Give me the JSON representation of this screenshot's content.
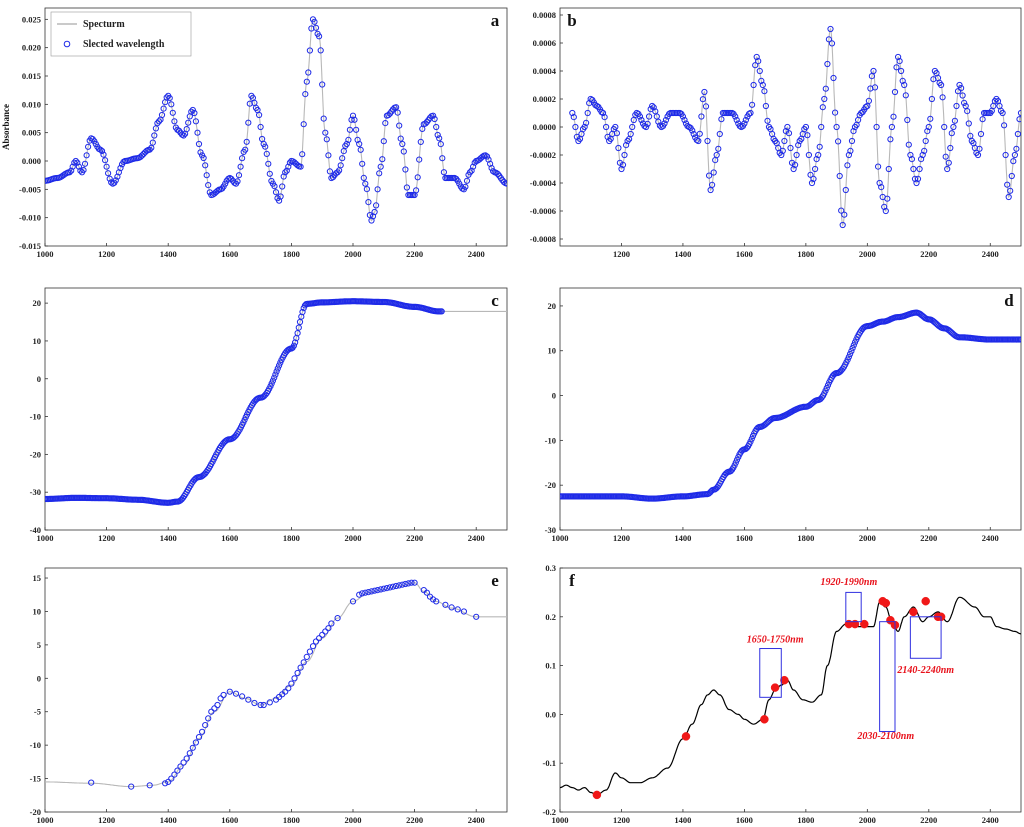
{
  "chart_data": [
    {
      "id": "a",
      "type": "line",
      "panel_label": "a",
      "ylabel": "Absorbance",
      "xlim": [
        1000,
        2500
      ],
      "ylim": [
        -0.015,
        0.027
      ],
      "xticks": [
        1000,
        1200,
        1400,
        1600,
        1800,
        2000,
        2200,
        2400
      ],
      "yticks": [
        -0.015,
        -0.01,
        -0.005,
        0,
        0.005,
        0.01,
        0.015,
        0.02,
        0.025
      ],
      "ytick_labels": [
        "-0.015",
        "-0.010",
        "-0.005",
        "0.000",
        "0.005",
        "0.010",
        "0.015",
        "0.020",
        "0.025"
      ],
      "legend": {
        "position": "top-left",
        "entries": [
          "Specturm",
          "Slected wavelength"
        ]
      },
      "series": [
        {
          "name": "Specturm",
          "style": "line",
          "color": "#b8b8b8",
          "x": [
            1000,
            1040,
            1080,
            1100,
            1120,
            1150,
            1180,
            1220,
            1260,
            1300,
            1340,
            1370,
            1400,
            1430,
            1450,
            1480,
            1510,
            1540,
            1570,
            1600,
            1620,
            1650,
            1670,
            1690,
            1710,
            1740,
            1760,
            1780,
            1800,
            1830,
            1850,
            1870,
            1890,
            1910,
            1930,
            1950,
            1980,
            2000,
            2020,
            2040,
            2060,
            2070,
            2090,
            2110,
            2140,
            2160,
            2180,
            2200,
            2230,
            2260,
            2280,
            2300,
            2330,
            2360,
            2380,
            2400,
            2430,
            2460,
            2500
          ],
          "y": [
            -0.0035,
            -0.003,
            -0.002,
            0.0,
            -0.002,
            0.004,
            0.002,
            -0.004,
            0.0,
            0.0005,
            0.002,
            0.007,
            0.0115,
            0.0055,
            0.0045,
            0.009,
            0.001,
            -0.006,
            -0.005,
            -0.003,
            -0.004,
            0.002,
            0.0115,
            0.009,
            0.003,
            -0.004,
            -0.007,
            -0.002,
            0.0,
            -0.001,
            0.014,
            0.025,
            0.022,
            0.005,
            -0.003,
            -0.002,
            0.003,
            0.008,
            0.003,
            -0.004,
            -0.0105,
            -0.009,
            -0.001,
            0.008,
            0.0095,
            0.003,
            -0.006,
            -0.006,
            0.0065,
            0.008,
            0.004,
            -0.003,
            -0.003,
            -0.005,
            -0.002,
            0.0,
            0.001,
            -0.002,
            -0.004
          ]
        },
        {
          "name": "Slected wavelength",
          "style": "markers-open",
          "color": "#1f2be8",
          "sample_step": 5
        }
      ]
    },
    {
      "id": "b",
      "type": "line",
      "panel_label": "b",
      "xlim": [
        1000,
        2500
      ],
      "ylim": [
        -0.00085,
        0.00085
      ],
      "xticks": [
        1200,
        1400,
        1600,
        1800,
        2000,
        2200,
        2400
      ],
      "yticks": [
        -0.0008,
        -0.0006,
        -0.0004,
        -0.0002,
        0,
        0.0002,
        0.0004,
        0.0006,
        0.0008
      ],
      "ytick_labels": [
        "-0.0008",
        "-0.0006",
        "-0.0004",
        "-0.0002",
        "0.0000",
        "0.0002",
        "0.0004",
        "0.0006",
        "0.0008"
      ],
      "series": [
        {
          "name": "",
          "style": "line",
          "color": "#b8b8b8",
          "x": [
            1040,
            1060,
            1080,
            1100,
            1120,
            1140,
            1160,
            1180,
            1200,
            1220,
            1250,
            1280,
            1300,
            1330,
            1360,
            1390,
            1420,
            1450,
            1470,
            1490,
            1510,
            1530,
            1560,
            1590,
            1620,
            1640,
            1660,
            1680,
            1700,
            1720,
            1740,
            1760,
            1780,
            1800,
            1820,
            1840,
            1860,
            1880,
            1900,
            1920,
            1940,
            1960,
            1980,
            2000,
            2020,
            2040,
            2060,
            2080,
            2100,
            2120,
            2140,
            2160,
            2180,
            2200,
            2220,
            2240,
            2260,
            2280,
            2300,
            2320,
            2340,
            2360,
            2380,
            2400,
            2420,
            2440,
            2460,
            2480,
            2500
          ],
          "y": [
            0.0001,
            -0.0001,
            0.0,
            0.0002,
            0.00015,
            0.0001,
            -0.0001,
            0.0,
            -0.0003,
            -0.0001,
            0.0001,
            0.0,
            0.00015,
            0.0,
            0.0001,
            0.0001,
            0.0,
            -0.0001,
            0.00025,
            -0.00045,
            -0.0002,
            0.0001,
            0.0001,
            0.0,
            0.0001,
            0.0005,
            0.0003,
            0.0,
            -0.0001,
            -0.0002,
            0.0,
            -0.0003,
            -0.0001,
            0.0,
            -0.0004,
            -0.0002,
            0.0002,
            0.0007,
            0.0,
            -0.0007,
            -0.0002,
            0.0,
            0.0001,
            0.00015,
            0.0004,
            -0.0004,
            -0.0006,
            0.0,
            0.0005,
            0.0003,
            -0.0002,
            -0.0004,
            -0.0002,
            0.0,
            0.0004,
            0.0003,
            -0.0003,
            0.0,
            0.0003,
            0.00015,
            -0.0001,
            -0.0002,
            0.0001,
            0.0001,
            0.0002,
            0.0001,
            -0.0005,
            -0.0002,
            0.0001
          ]
        },
        {
          "name": "",
          "style": "markers-open",
          "color": "#1f2be8",
          "sample_step": 5
        }
      ]
    },
    {
      "id": "c",
      "type": "line",
      "panel_label": "c",
      "xlim": [
        1000,
        2500
      ],
      "ylim": [
        -40,
        24
      ],
      "xticks": [
        1000,
        1200,
        1400,
        1600,
        1800,
        2000,
        2200,
        2400
      ],
      "yticks": [
        -40,
        -30,
        -20,
        -10,
        0,
        10,
        20
      ],
      "ytick_labels": [
        "-40",
        "-30",
        "-20",
        "-10",
        "0",
        "10",
        "20"
      ],
      "series": [
        {
          "name": "",
          "style": "line",
          "color": "#b8b8b8",
          "x": [
            1000,
            1100,
            1200,
            1300,
            1400,
            1430,
            1500,
            1600,
            1700,
            1800,
            1850,
            1900,
            2000,
            2100,
            2200,
            2280,
            2500
          ],
          "y": [
            -31.8,
            -31.5,
            -31.6,
            -32.0,
            -32.8,
            -32.5,
            -26,
            -16,
            -5,
            8,
            19.8,
            20.2,
            20.5,
            20.3,
            19.0,
            17.8,
            17.8
          ]
        },
        {
          "name": "",
          "style": "markers-open",
          "color": "#1f2be8",
          "sample_step": 4,
          "x_max": 2290
        }
      ]
    },
    {
      "id": "d",
      "type": "line",
      "panel_label": "d",
      "xlim": [
        1000,
        2500
      ],
      "ylim": [
        -30,
        24
      ],
      "xticks": [
        1000,
        1200,
        1400,
        1600,
        1800,
        2000,
        2200,
        2400
      ],
      "yticks": [
        -30,
        -20,
        -10,
        0,
        10,
        20
      ],
      "ytick_labels": [
        "-30",
        "-20",
        "-10",
        "0",
        "10",
        "20"
      ],
      "series": [
        {
          "name": "",
          "style": "line",
          "color": "#b8b8b8",
          "x": [
            1000,
            1200,
            1300,
            1400,
            1480,
            1500,
            1550,
            1600,
            1650,
            1700,
            1800,
            1840,
            1900,
            2000,
            2050,
            2100,
            2160,
            2200,
            2250,
            2300,
            2400,
            2500
          ],
          "y": [
            -22.5,
            -22.5,
            -23,
            -22.5,
            -22,
            -21,
            -17,
            -12,
            -7,
            -5,
            -2.5,
            -1,
            5,
            15.5,
            16.5,
            17.5,
            18.5,
            17,
            15,
            13,
            12.5,
            12.5
          ]
        },
        {
          "name": "",
          "style": "markers-open",
          "color": "#1f2be8",
          "sample_step": 4
        }
      ]
    },
    {
      "id": "e",
      "type": "line",
      "panel_label": "e",
      "xlim": [
        1000,
        2500
      ],
      "ylim": [
        -20,
        16.5
      ],
      "xticks": [
        1000,
        1200,
        1400,
        1600,
        1800,
        2000,
        2200,
        2400
      ],
      "yticks": [
        -20,
        -15,
        -10,
        -5,
        0,
        5,
        10,
        15
      ],
      "ytick_labels": [
        "-20",
        "-15",
        "-10",
        "-5",
        "0",
        "5",
        "10",
        "15"
      ],
      "series": [
        {
          "name": "",
          "style": "line",
          "color": "#b8b8b8",
          "x": [
            1000,
            1150,
            1280,
            1350,
            1400,
            1450,
            1500,
            1550,
            1600,
            1650,
            1700,
            1750,
            1800,
            1850,
            1900,
            1950,
            2000,
            2050,
            2100,
            2150,
            2200,
            2230,
            2270,
            2320,
            2400,
            2500
          ],
          "y": [
            -15.5,
            -15.7,
            -16.2,
            -16,
            -15.5,
            -13,
            -9,
            -5,
            -2,
            -3,
            -4,
            -3,
            -1,
            2.5,
            6,
            9,
            11.5,
            12.8,
            13.3,
            13.8,
            14.3,
            13,
            11.5,
            10.5,
            9.2,
            9.2
          ]
        },
        {
          "name": "",
          "style": "markers-open",
          "color": "#1f2be8",
          "x": [
            1150,
            1280,
            1340,
            1390,
            1400,
            1410,
            1420,
            1430,
            1440,
            1450,
            1460,
            1470,
            1480,
            1490,
            1500,
            1510,
            1520,
            1530,
            1540,
            1550,
            1560,
            1570,
            1580,
            1600,
            1620,
            1640,
            1660,
            1680,
            1700,
            1710,
            1730,
            1750,
            1760,
            1770,
            1780,
            1790,
            1800,
            1810,
            1820,
            1830,
            1840,
            1850,
            1860,
            1870,
            1880,
            1890,
            1900,
            1910,
            1920,
            1930,
            1950,
            2000,
            2020,
            2030,
            2040,
            2050,
            2060,
            2070,
            2080,
            2090,
            2100,
            2110,
            2120,
            2130,
            2140,
            2150,
            2160,
            2170,
            2180,
            2190,
            2200,
            2230,
            2240,
            2250,
            2260,
            2270,
            2300,
            2320,
            2340,
            2360,
            2400
          ],
          "y": [
            -15.6,
            -16.2,
            -16,
            -15.7,
            -15.5,
            -15,
            -14.4,
            -13.8,
            -13.2,
            -12.6,
            -12,
            -11.2,
            -10.4,
            -9.6,
            -8.8,
            -8,
            -7,
            -6,
            -5,
            -4.5,
            -4,
            -3,
            -2.5,
            -2,
            -2.3,
            -2.7,
            -3.2,
            -3.7,
            -4,
            -4,
            -3.6,
            -3.2,
            -2.8,
            -2.4,
            -2,
            -1.5,
            -0.8,
            0,
            0.8,
            1.6,
            2.4,
            3.2,
            4,
            4.8,
            5.5,
            6,
            6.5,
            7,
            7.5,
            8.2,
            9,
            11.5,
            12.5,
            12.7,
            12.8,
            12.9,
            13,
            13.1,
            13.2,
            13.3,
            13.4,
            13.5,
            13.6,
            13.7,
            13.8,
            13.9,
            14.0,
            14.1,
            14.2,
            14.3,
            14.3,
            13.2,
            12.8,
            12.2,
            11.8,
            11.5,
            11,
            10.6,
            10.3,
            10,
            9.2
          ]
        }
      ]
    },
    {
      "id": "f",
      "type": "line",
      "panel_label": "f",
      "xlim": [
        1000,
        2500
      ],
      "ylim": [
        -0.2,
        0.3
      ],
      "xticks": [
        1000,
        1200,
        1400,
        1600,
        1800,
        2000,
        2200,
        2400
      ],
      "yticks": [
        -0.2,
        -0.1,
        0,
        0.1,
        0.2,
        0.3
      ],
      "ytick_labels": [
        "-0.2",
        "-0.1",
        "0.0",
        "0.1",
        "0.2",
        "0.3"
      ],
      "series": [
        {
          "name": "",
          "style": "line",
          "color": "#000000",
          "x": [
            1000,
            1020,
            1040,
            1060,
            1080,
            1100,
            1120,
            1150,
            1180,
            1200,
            1230,
            1260,
            1300,
            1350,
            1400,
            1430,
            1460,
            1480,
            1500,
            1520,
            1550,
            1580,
            1600,
            1630,
            1660,
            1680,
            1700,
            1720,
            1740,
            1760,
            1790,
            1820,
            1850,
            1870,
            1900,
            1930,
            1950,
            1970,
            2000,
            2020,
            2040,
            2060,
            2080,
            2100,
            2120,
            2150,
            2180,
            2200,
            2230,
            2260,
            2300,
            2350,
            2380,
            2400,
            2420,
            2450,
            2480,
            2500
          ],
          "y": [
            -0.15,
            -0.145,
            -0.15,
            -0.155,
            -0.15,
            -0.16,
            -0.165,
            -0.155,
            -0.12,
            -0.13,
            -0.14,
            -0.14,
            -0.13,
            -0.11,
            -0.05,
            -0.02,
            0.02,
            0.04,
            0.05,
            0.04,
            0.01,
            0.0,
            -0.01,
            -0.02,
            -0.01,
            0.03,
            0.05,
            0.06,
            0.07,
            0.05,
            0.03,
            0.025,
            0.04,
            0.1,
            0.17,
            0.185,
            0.185,
            0.18,
            0.18,
            0.18,
            0.23,
            0.22,
            0.19,
            0.17,
            0.2,
            0.22,
            0.19,
            0.2,
            0.21,
            0.19,
            0.24,
            0.22,
            0.2,
            0.2,
            0.18,
            0.175,
            0.17,
            0.165
          ]
        },
        {
          "name": "",
          "style": "markers-filled",
          "color": "#f01818",
          "x": [
            1120,
            1410,
            1665,
            1700,
            1730,
            1940,
            1960,
            1990,
            2050,
            2060,
            2075,
            2090,
            2150,
            2190,
            2230,
            2240
          ],
          "y": [
            -0.165,
            -0.045,
            -0.01,
            0.055,
            0.07,
            0.185,
            0.185,
            0.185,
            0.232,
            0.228,
            0.193,
            0.183,
            0.21,
            0.232,
            0.2,
            0.2
          ]
        }
      ],
      "annotations": [
        {
          "text": "1650-1750nm",
          "box": {
            "x0": 1650,
            "x1": 1720,
            "y0": 0.035,
            "y1": 0.135
          },
          "label_x": 1700,
          "label_y": 0.147
        },
        {
          "text": "1920-1990nm",
          "box": {
            "x0": 1930,
            "x1": 1980,
            "y0": 0.19,
            "y1": 0.25
          },
          "label_x": 1940,
          "label_y": 0.265
        },
        {
          "text": "2030-2100nm",
          "box": {
            "x0": 2040,
            "x1": 2090,
            "y0": -0.035,
            "y1": 0.19
          },
          "label_x": 2060,
          "label_y": -0.05
        },
        {
          "text": "2140-2240nm",
          "box": {
            "x0": 2140,
            "x1": 2240,
            "y0": 0.115,
            "y1": 0.2
          },
          "label_x": 2190,
          "label_y": 0.085
        }
      ]
    }
  ]
}
